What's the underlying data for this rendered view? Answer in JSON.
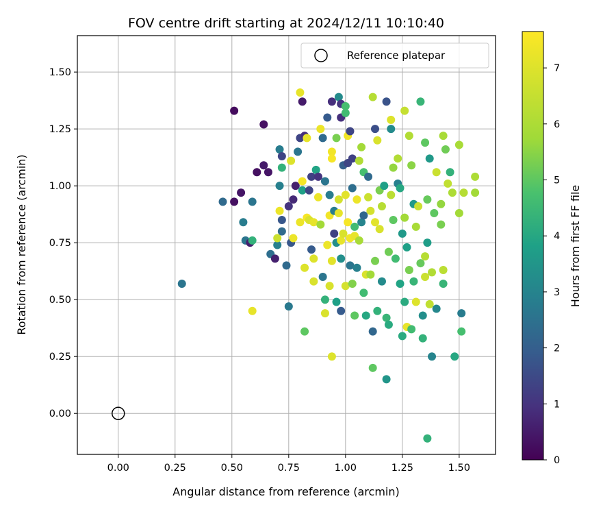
{
  "chart_data": {
    "type": "scatter",
    "title": "FOV centre drift starting at 2024/12/11 10:10:40",
    "xlabel": "Angular distance from reference (arcmin)",
    "ylabel": "Rotation from reference (arcmin)",
    "xlim": [
      -0.18,
      1.66
    ],
    "ylim": [
      -0.18,
      1.66
    ],
    "xticks": [
      "0.00",
      "0.25",
      "0.50",
      "0.75",
      "1.00",
      "1.25",
      "1.50"
    ],
    "xtick_values": [
      0,
      0.25,
      0.5,
      0.75,
      1.0,
      1.25,
      1.5
    ],
    "yticks": [
      "0.00",
      "0.25",
      "0.50",
      "0.75",
      "1.00",
      "1.25",
      "1.50"
    ],
    "ytick_values": [
      0,
      0.25,
      0.5,
      0.75,
      1.0,
      1.25,
      1.5
    ],
    "grid": true,
    "colormap": "viridis",
    "colorbar": {
      "label": "Hours from first FF file",
      "range": [
        0,
        7.65
      ],
      "ticks": [
        "0",
        "1",
        "2",
        "3",
        "4",
        "5",
        "6",
        "7"
      ],
      "tick_values": [
        0,
        1,
        2,
        3,
        4,
        5,
        6,
        7
      ]
    },
    "legend": {
      "placement": "top-right",
      "entries": [
        {
          "label": "Reference platepar",
          "marker": "open-circle"
        }
      ]
    },
    "reference_point": {
      "x": 0.0,
      "y": 0.0
    },
    "points": [
      [
        0.28,
        0.57,
        2.6
      ],
      [
        0.46,
        0.93,
        2.3
      ],
      [
        0.51,
        1.33,
        0.2
      ],
      [
        0.51,
        0.93,
        0.3
      ],
      [
        0.54,
        0.97,
        0.4
      ],
      [
        0.55,
        0.84,
        2.8
      ],
      [
        0.56,
        0.76,
        2.6
      ],
      [
        0.58,
        0.75,
        0.6
      ],
      [
        0.59,
        0.76,
        4.3
      ],
      [
        0.59,
        0.45,
        7.2
      ],
      [
        0.59,
        0.93,
        2.6
      ],
      [
        0.61,
        1.06,
        0.3
      ],
      [
        0.64,
        1.27,
        0.3
      ],
      [
        0.64,
        1.09,
        0.5
      ],
      [
        0.66,
        1.06,
        0.4
      ],
      [
        0.67,
        0.7,
        2.4
      ],
      [
        0.69,
        0.68,
        0.6
      ],
      [
        0.7,
        0.74,
        2.9
      ],
      [
        0.7,
        0.77,
        6.6
      ],
      [
        0.71,
        1.16,
        2.8
      ],
      [
        0.71,
        1.0,
        2.9
      ],
      [
        0.71,
        0.89,
        7.3
      ],
      [
        0.72,
        0.8,
        2.3
      ],
      [
        0.72,
        0.85,
        1.8
      ],
      [
        0.72,
        1.13,
        1.4
      ],
      [
        0.72,
        1.08,
        4.3
      ],
      [
        0.74,
        0.65,
        2.3
      ],
      [
        0.75,
        0.47,
        2.7
      ],
      [
        0.75,
        0.91,
        1.0
      ],
      [
        0.76,
        1.11,
        7.0
      ],
      [
        0.76,
        0.75,
        1.8
      ],
      [
        0.77,
        0.77,
        7.3
      ],
      [
        0.77,
        0.94,
        0.8
      ],
      [
        0.78,
        1.0,
        0.6
      ],
      [
        0.79,
        1.15,
        2.6
      ],
      [
        0.8,
        0.84,
        7.3
      ],
      [
        0.8,
        1.21,
        1.4
      ],
      [
        0.8,
        1.41,
        7.2
      ],
      [
        0.81,
        1.37,
        0.5
      ],
      [
        0.81,
        1.02,
        7.5
      ],
      [
        0.81,
        0.98,
        3.8
      ],
      [
        0.82,
        0.64,
        7.0
      ],
      [
        0.82,
        1.22,
        0.9
      ],
      [
        0.82,
        0.36,
        5.0
      ],
      [
        0.83,
        0.86,
        7.5
      ],
      [
        0.83,
        1.21,
        7.2
      ],
      [
        0.84,
        0.85,
        6.9
      ],
      [
        0.84,
        0.98,
        1.4
      ],
      [
        0.85,
        0.72,
        1.9
      ],
      [
        0.85,
        1.04,
        1.3
      ],
      [
        0.86,
        0.68,
        7.0
      ],
      [
        0.86,
        0.58,
        6.9
      ],
      [
        0.86,
        0.84,
        7.2
      ],
      [
        0.87,
        1.07,
        3.9
      ],
      [
        0.88,
        1.04,
        1.0
      ],
      [
        0.88,
        0.95,
        7.3
      ],
      [
        0.89,
        0.83,
        5.8
      ],
      [
        0.89,
        1.25,
        7.3
      ],
      [
        0.9,
        0.6,
        2.6
      ],
      [
        0.9,
        1.21,
        2.3
      ],
      [
        0.91,
        0.5,
        4.3
      ],
      [
        0.91,
        0.44,
        6.9
      ],
      [
        0.91,
        1.02,
        2.6
      ],
      [
        0.92,
        1.3,
        1.9
      ],
      [
        0.92,
        0.74,
        7.3
      ],
      [
        0.93,
        0.96,
        2.8
      ],
      [
        0.93,
        0.87,
        7.4
      ],
      [
        0.93,
        0.56,
        6.9
      ],
      [
        0.94,
        1.37,
        0.9
      ],
      [
        0.94,
        1.15,
        7.4
      ],
      [
        0.94,
        1.12,
        7.5
      ],
      [
        0.94,
        0.67,
        7.1
      ],
      [
        0.94,
        0.25,
        7.0
      ],
      [
        0.95,
        0.79,
        1.3
      ],
      [
        0.95,
        0.89,
        2.8
      ],
      [
        0.96,
        0.49,
        3.8
      ],
      [
        0.96,
        0.75,
        3.3
      ],
      [
        0.96,
        1.21,
        5.3
      ],
      [
        0.97,
        1.39,
        3.2
      ],
      [
        0.97,
        0.88,
        7.2
      ],
      [
        0.97,
        0.94,
        6.8
      ],
      [
        0.98,
        0.76,
        7.2
      ],
      [
        0.98,
        1.36,
        1.0
      ],
      [
        0.98,
        1.3,
        0.9
      ],
      [
        0.98,
        0.68,
        3.3
      ],
      [
        0.98,
        0.45,
        1.9
      ],
      [
        0.99,
        0.79,
        6.9
      ],
      [
        0.99,
        1.09,
        2.0
      ],
      [
        1.0,
        1.32,
        4.6
      ],
      [
        1.0,
        1.35,
        4.7
      ],
      [
        1.0,
        0.56,
        6.8
      ],
      [
        1.0,
        0.96,
        7.1
      ],
      [
        1.01,
        0.84,
        7.5
      ],
      [
        1.01,
        1.1,
        1.4
      ],
      [
        1.01,
        1.22,
        7.4
      ],
      [
        1.02,
        1.24,
        1.4
      ],
      [
        1.02,
        0.77,
        7.4
      ],
      [
        1.02,
        0.65,
        2.6
      ],
      [
        1.03,
        0.99,
        2.4
      ],
      [
        1.03,
        1.12,
        1.3
      ],
      [
        1.03,
        0.57,
        5.4
      ],
      [
        1.04,
        0.43,
        5.0
      ],
      [
        1.04,
        0.82,
        4.6
      ],
      [
        1.04,
        0.78,
        7.2
      ],
      [
        1.05,
        0.94,
        7.3
      ],
      [
        1.05,
        0.64,
        2.9
      ],
      [
        1.06,
        0.76,
        5.9
      ],
      [
        1.06,
        1.11,
        6.1
      ],
      [
        1.07,
        1.17,
        5.8
      ],
      [
        1.07,
        0.84,
        3.0
      ],
      [
        1.08,
        1.06,
        4.7
      ],
      [
        1.08,
        0.53,
        4.6
      ],
      [
        1.08,
        0.87,
        2.2
      ],
      [
        1.09,
        0.61,
        6.9
      ],
      [
        1.09,
        0.43,
        4.0
      ],
      [
        1.1,
        1.04,
        2.3
      ],
      [
        1.1,
        0.95,
        6.6
      ],
      [
        1.11,
        0.89,
        6.8
      ],
      [
        1.11,
        0.61,
        5.8
      ],
      [
        1.12,
        1.39,
        6.2
      ],
      [
        1.12,
        0.2,
        5.0
      ],
      [
        1.12,
        0.36,
        2.2
      ],
      [
        1.13,
        0.67,
        5.3
      ],
      [
        1.13,
        1.25,
        1.6
      ],
      [
        1.13,
        0.84,
        7.1
      ],
      [
        1.14,
        0.45,
        4.3
      ],
      [
        1.14,
        1.2,
        6.9
      ],
      [
        1.15,
        0.81,
        6.9
      ],
      [
        1.15,
        0.98,
        5.3
      ],
      [
        1.16,
        0.91,
        6.2
      ],
      [
        1.16,
        0.58,
        3.2
      ],
      [
        1.17,
        1.0,
        3.8
      ],
      [
        1.18,
        1.37,
        1.7
      ],
      [
        1.18,
        0.42,
        4.4
      ],
      [
        1.18,
        0.15,
        3.5
      ],
      [
        1.19,
        0.39,
        4.1
      ],
      [
        1.19,
        0.71,
        5.2
      ],
      [
        1.2,
        1.29,
        7.0
      ],
      [
        1.2,
        1.25,
        3.2
      ],
      [
        1.2,
        0.96,
        6.3
      ],
      [
        1.21,
        1.08,
        5.6
      ],
      [
        1.21,
        0.85,
        5.0
      ],
      [
        1.22,
        0.68,
        4.6
      ],
      [
        1.23,
        1.01,
        2.9
      ],
      [
        1.23,
        1.12,
        6.1
      ],
      [
        1.24,
        0.99,
        4.0
      ],
      [
        1.24,
        0.57,
        3.9
      ],
      [
        1.25,
        0.34,
        4.1
      ],
      [
        1.25,
        0.79,
        3.6
      ],
      [
        1.26,
        1.33,
        6.5
      ],
      [
        1.26,
        0.49,
        4.1
      ],
      [
        1.26,
        0.86,
        5.8
      ],
      [
        1.27,
        0.38,
        7.2
      ],
      [
        1.27,
        0.73,
        3.8
      ],
      [
        1.28,
        1.22,
        6.1
      ],
      [
        1.28,
        0.63,
        5.3
      ],
      [
        1.29,
        0.37,
        4.6
      ],
      [
        1.29,
        1.09,
        5.5
      ],
      [
        1.3,
        0.92,
        3.6
      ],
      [
        1.3,
        0.58,
        4.4
      ],
      [
        1.31,
        0.49,
        7.0
      ],
      [
        1.31,
        0.82,
        5.9
      ],
      [
        1.32,
        0.91,
        6.6
      ],
      [
        1.33,
        1.37,
        4.4
      ],
      [
        1.33,
        0.66,
        5.1
      ],
      [
        1.34,
        0.43,
        3.3
      ],
      [
        1.34,
        0.33,
        4.3
      ],
      [
        1.35,
        1.19,
        5.0
      ],
      [
        1.35,
        0.69,
        6.2
      ],
      [
        1.35,
        0.6,
        6.6
      ],
      [
        1.36,
        0.94,
        5.1
      ],
      [
        1.36,
        -0.11,
        4.3
      ],
      [
        1.36,
        0.75,
        3.7
      ],
      [
        1.37,
        1.12,
        3.6
      ],
      [
        1.37,
        0.48,
        6.4
      ],
      [
        1.38,
        0.25,
        3.0
      ],
      [
        1.38,
        0.62,
        6.1
      ],
      [
        1.39,
        0.88,
        5.0
      ],
      [
        1.4,
        1.06,
        6.6
      ],
      [
        1.4,
        0.46,
        3.1
      ],
      [
        1.42,
        0.92,
        5.6
      ],
      [
        1.42,
        0.83,
        5.3
      ],
      [
        1.43,
        1.22,
        5.9
      ],
      [
        1.43,
        0.57,
        4.4
      ],
      [
        1.43,
        0.63,
        6.3
      ],
      [
        1.44,
        1.16,
        5.2
      ],
      [
        1.45,
        1.01,
        6.4
      ],
      [
        1.46,
        1.06,
        4.3
      ],
      [
        1.47,
        0.97,
        6.0
      ],
      [
        1.48,
        0.25,
        4.0
      ],
      [
        1.5,
        1.18,
        5.9
      ],
      [
        1.5,
        0.88,
        5.8
      ],
      [
        1.51,
        0.44,
        2.8
      ],
      [
        1.51,
        0.36,
        4.7
      ],
      [
        1.52,
        0.97,
        6.2
      ],
      [
        1.57,
        1.04,
        6.0
      ],
      [
        1.57,
        0.97,
        5.8
      ]
    ]
  }
}
